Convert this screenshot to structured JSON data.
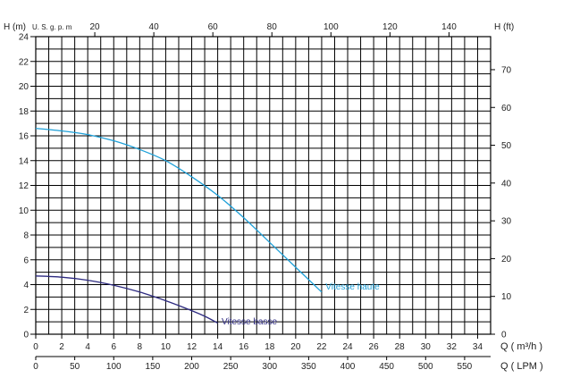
{
  "chart_data": {
    "type": "line",
    "axes": {
      "left": {
        "label": "H (m)",
        "min": 0,
        "max": 24,
        "step": 2,
        "ticks": [
          "0",
          "2",
          "4",
          "6",
          "8",
          "10",
          "12",
          "14",
          "16",
          "18",
          "20",
          "22",
          "24"
        ]
      },
      "top": {
        "label": "U. S. g. p. m",
        "ticks": [
          "20",
          "40",
          "60",
          "80",
          "100",
          "120",
          "140"
        ],
        "values": [
          20,
          40,
          60,
          80,
          100,
          120,
          140
        ],
        "unit_per_m3h": 4.4029
      },
      "right": {
        "label": "H (ft)",
        "ticks": [
          "0",
          "10",
          "20",
          "30",
          "40",
          "50",
          "60",
          "70"
        ],
        "values": [
          0,
          10,
          20,
          30,
          40,
          50,
          60,
          70
        ],
        "unit_per_m": 3.2808
      },
      "bottom1": {
        "label": "Q ( m³/h )",
        "min": 0,
        "max": 35,
        "ticks": [
          "0",
          "2",
          "4",
          "6",
          "8",
          "10",
          "12",
          "14",
          "16",
          "18",
          "20",
          "22",
          "24",
          "26",
          "28",
          "30",
          "32",
          "34"
        ],
        "values": [
          0,
          2,
          4,
          6,
          8,
          10,
          12,
          14,
          16,
          18,
          20,
          22,
          24,
          26,
          28,
          30,
          32,
          34
        ]
      },
      "bottom2": {
        "label": "Q ( LPM )",
        "ticks": [
          "0",
          "50",
          "100",
          "150",
          "200",
          "250",
          "300",
          "350",
          "400",
          "450",
          "500",
          "550"
        ],
        "values": [
          0,
          50,
          100,
          150,
          200,
          250,
          300,
          350,
          400,
          450,
          500,
          550
        ],
        "unit_per_m3h": 16.667
      }
    },
    "grid": {
      "on": true,
      "x_step": 1,
      "y_step": 1
    },
    "series": [
      {
        "name": "Vitesse haute",
        "color": "#1ea0d8",
        "points": [
          [
            0,
            16.6
          ],
          [
            2,
            16.4
          ],
          [
            4,
            16.1
          ],
          [
            6,
            15.6
          ],
          [
            8,
            14.9
          ],
          [
            10,
            14.0
          ],
          [
            12,
            12.7
          ],
          [
            14,
            11.2
          ],
          [
            16,
            9.4
          ],
          [
            18,
            7.4
          ],
          [
            20,
            5.4
          ],
          [
            22,
            3.4
          ]
        ],
        "label_at": [
          22.3,
          3.6
        ]
      },
      {
        "name": "Vitesse basse",
        "color": "#2d2a80",
        "points": [
          [
            0,
            4.7
          ],
          [
            2,
            4.6
          ],
          [
            4,
            4.35
          ],
          [
            6,
            3.95
          ],
          [
            8,
            3.4
          ],
          [
            10,
            2.7
          ],
          [
            12,
            1.9
          ],
          [
            13,
            1.45
          ],
          [
            14,
            0.9
          ]
        ],
        "label_at": [
          14.3,
          0.8
        ]
      }
    ]
  }
}
